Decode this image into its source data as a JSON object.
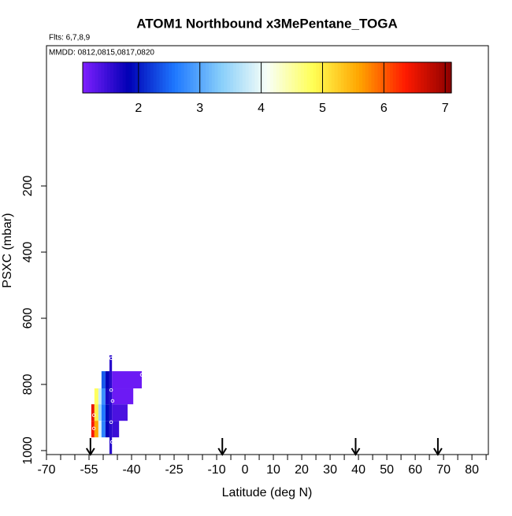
{
  "chart_data": {
    "type": "curtain",
    "title": "ATOM1 Northbound x3MePentane_TOGA",
    "subtitle": "Flts: 6,7,8,9",
    "annotation": "MMDD: 0812,0815,0817,0820",
    "xlabel": "Latitude (deg N)",
    "ylabel": "PSXC (mbar)",
    "xlim": [
      -70,
      85.8
    ],
    "xticks": [
      -70,
      -55,
      -40,
      -25,
      -10,
      0,
      10,
      20,
      30,
      40,
      50,
      60,
      70,
      80
    ],
    "xminorticks": [
      -65,
      -60,
      -50,
      -45,
      -35,
      -30,
      -20,
      -15,
      -5,
      5,
      15,
      25,
      35,
      45,
      55,
      65,
      75,
      85
    ],
    "ylim": [
      1012,
      -224
    ],
    "yticks": [
      200,
      400,
      600,
      800,
      1000
    ],
    "clim": [
      1.09,
      7.1
    ],
    "cticks": [
      2,
      3,
      4,
      5,
      6,
      7
    ],
    "colorscale": [
      "#7f1fff",
      "#0000b4",
      "#1e78ff",
      "#87cefa",
      "#f8fff8",
      "#ffff55",
      "#ffa500",
      "#ff1a00",
      "#8b0000"
    ],
    "cells": {
      "x0": [
        -50.6,
        -49.2,
        -46.9,
        -53.1,
        -51.7,
        -50.6,
        -49.2,
        -46.9,
        -54.2,
        -53.1,
        -51.7,
        -50.6,
        -49.2,
        -46.9,
        -54.2,
        -53.1,
        -51.7,
        -50.6,
        -49.2,
        -46.9,
        -47.8
      ],
      "x1": [
        -49.2,
        -47.8,
        -36.4,
        -51.7,
        -50.6,
        -49.2,
        -47.8,
        -39.4,
        -53.1,
        -51.7,
        -50.6,
        -49.2,
        -47.8,
        -41.4,
        -53.1,
        -51.7,
        -50.6,
        -49.2,
        -47.8,
        -44.4,
        -46.9
      ],
      "y0": [
        760,
        760,
        760,
        812,
        812,
        812,
        812,
        812,
        860,
        860,
        860,
        860,
        860,
        860,
        910,
        910,
        910,
        910,
        910,
        910,
        712
      ],
      "y1": [
        812,
        812,
        812,
        860,
        860,
        860,
        860,
        860,
        910,
        910,
        910,
        910,
        910,
        910,
        960,
        960,
        960,
        960,
        960,
        960,
        1010
      ],
      "values": [
        2.4,
        1.8,
        1.2,
        4.8,
        3.8,
        2.8,
        1.7,
        1.2,
        6.5,
        5.0,
        3.5,
        2.6,
        1.9,
        1.4,
        6.4,
        5.6,
        3.9,
        2.7,
        1.8,
        1.5,
        1.6
      ]
    },
    "points": {
      "x": [
        -47.2,
        -47.2,
        -46.7,
        -53.3,
        -53.3,
        -47.2,
        -46.9,
        -36.4
      ],
      "y": [
        721,
        817,
        850,
        893,
        933,
        914,
        974,
        771
      ]
    },
    "arrows": [
      -54.5,
      -8,
      39,
      68
    ]
  }
}
